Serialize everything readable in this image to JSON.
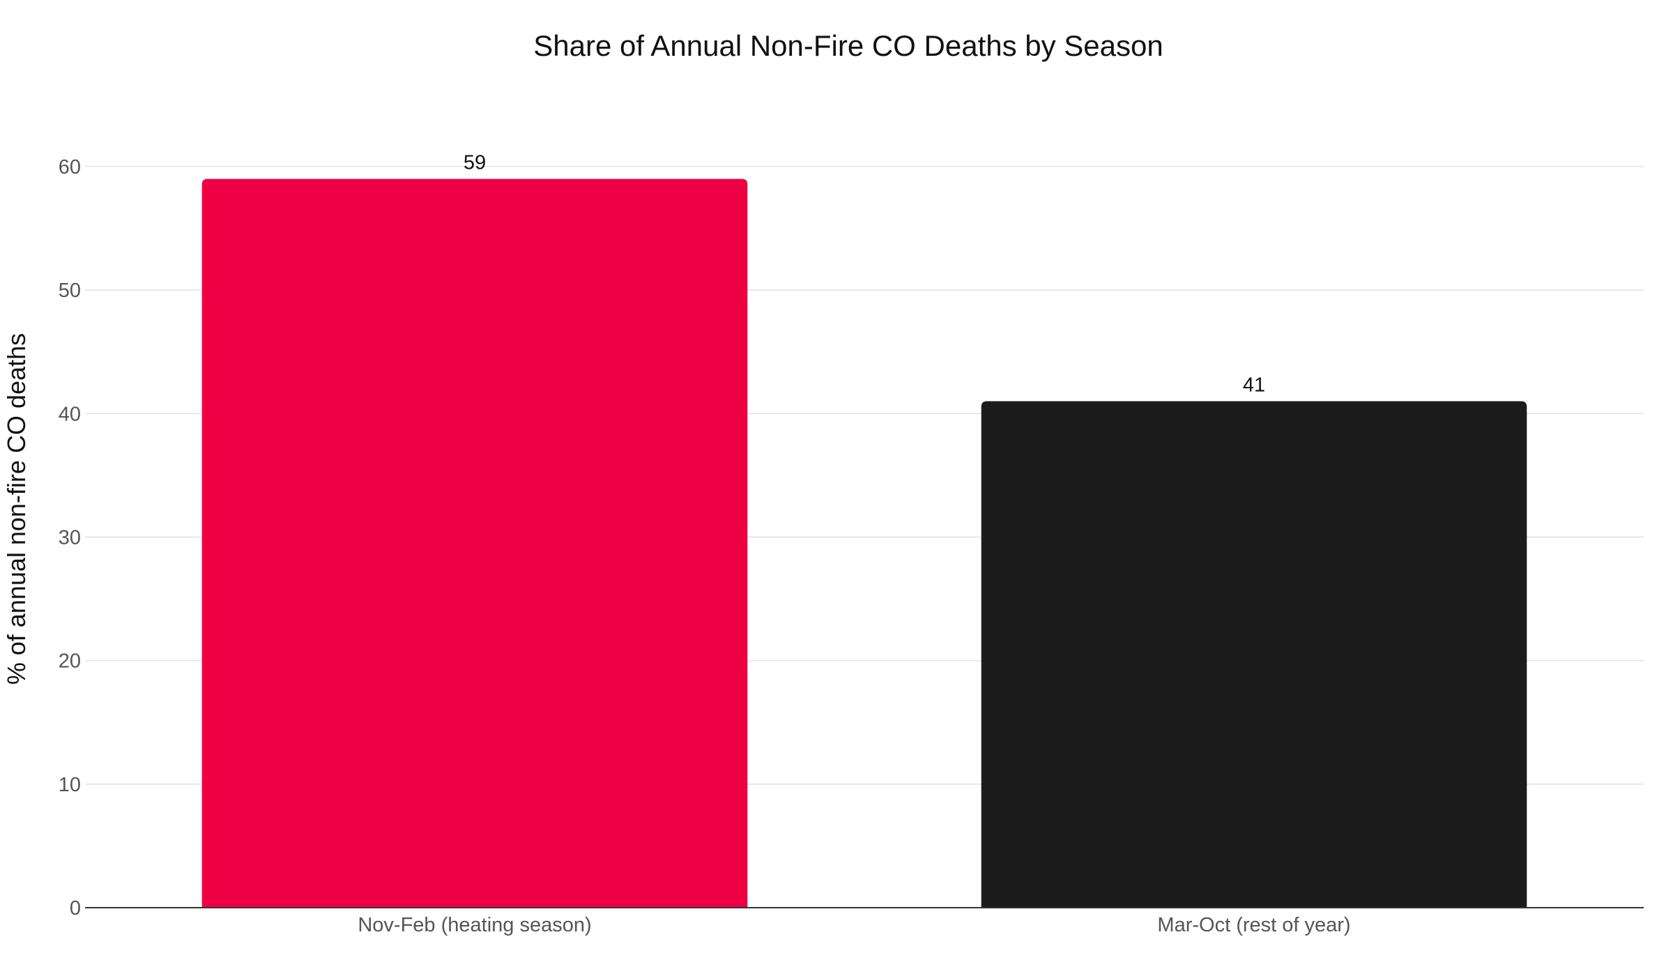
{
  "chart_data": {
    "type": "bar",
    "title": "Share of Annual Non-Fire CO Deaths by Season",
    "xlabel": "",
    "ylabel": "% of annual non-fire CO deaths",
    "categories": [
      "Nov-Feb (heating season)",
      "Mar-Oct (rest of year)"
    ],
    "values": [
      59,
      41
    ],
    "value_labels": [
      "59",
      "41"
    ],
    "colors": [
      "#ee0044",
      "#1c1c1c"
    ],
    "ylim": [
      0,
      64
    ],
    "yticks": [
      0,
      10,
      20,
      30,
      40,
      50,
      60
    ],
    "ytick_labels": [
      "0",
      "10",
      "20",
      "30",
      "40",
      "50",
      "60"
    ],
    "grid": true,
    "legend": "none"
  }
}
